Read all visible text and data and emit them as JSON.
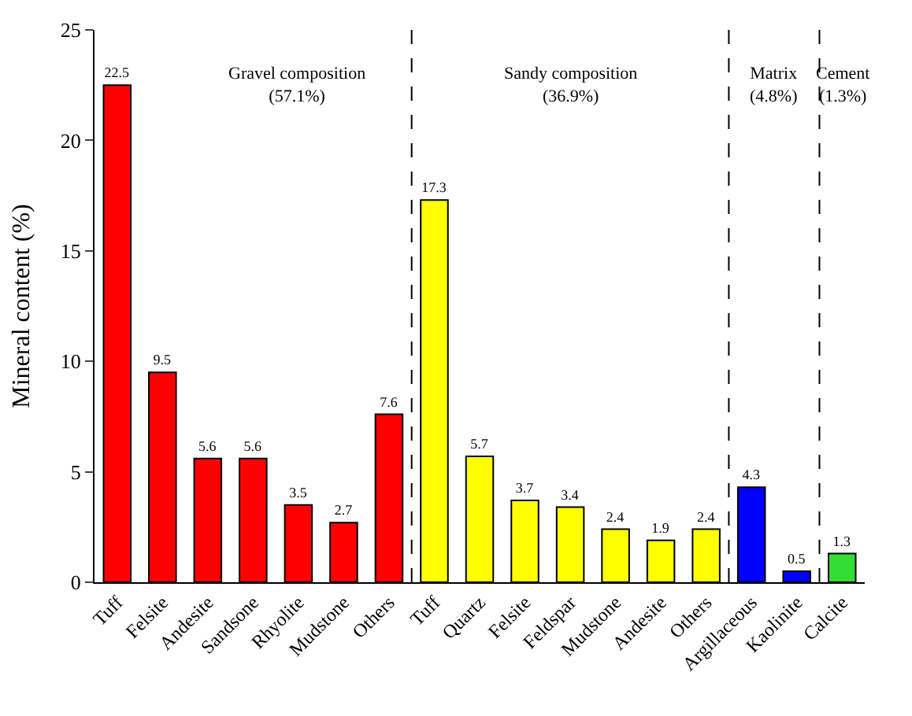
{
  "chart_data": {
    "type": "bar",
    "categories": [
      "Tuff",
      "Felsite",
      "Andesite",
      "Sandsone",
      "Rhyolite",
      "Mudstone",
      "Others",
      "Tuff",
      "Quartz",
      "Felsite",
      "Feldspar",
      "Mudstone",
      "Andesite",
      "Others",
      "Argillaceous",
      "Kaolinite",
      "Calcite"
    ],
    "values": [
      22.5,
      9.5,
      5.6,
      5.6,
      3.5,
      2.7,
      7.6,
      17.3,
      5.7,
      3.7,
      3.4,
      2.4,
      1.9,
      2.4,
      4.3,
      0.5,
      1.3
    ],
    "colors": [
      "#ff0000",
      "#ff0000",
      "#ff0000",
      "#ff0000",
      "#ff0000",
      "#ff0000",
      "#ff0000",
      "#ffff00",
      "#ffff00",
      "#ffff00",
      "#ffff00",
      "#ffff00",
      "#ffff00",
      "#ffff00",
      "#0000ff",
      "#0000ff",
      "#33dd33"
    ],
    "ylabel": "Mineral content (%)",
    "ylim": [
      0,
      25
    ],
    "yticks": [
      0,
      5,
      10,
      15,
      20,
      25
    ],
    "data_labels": true,
    "annotations": [
      "Gravel composition\n(57.1%)",
      "Sandy composition\n(36.9%)",
      "Matrix\n(4.8%)",
      "Cement\n(1.3%)"
    ]
  }
}
